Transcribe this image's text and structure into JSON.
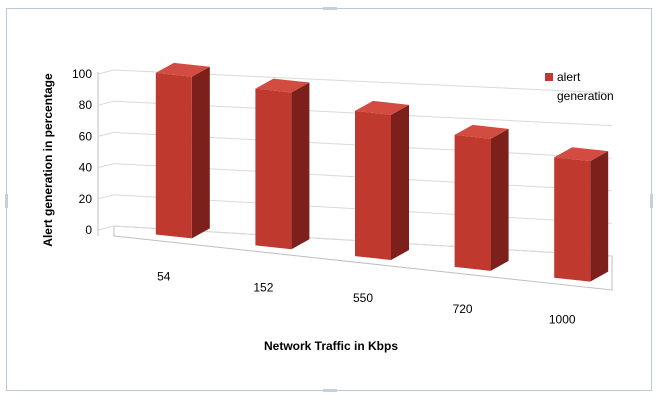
{
  "chart_data": {
    "type": "bar",
    "title": "",
    "xlabel": "Network Traffic in Kbps",
    "ylabel": "Alert generation in percentage",
    "categories": [
      "54",
      "152",
      "550",
      "720",
      "1000"
    ],
    "series": [
      {
        "name": "alert generation",
        "values": [
          98,
          95,
          88,
          80,
          73
        ]
      }
    ],
    "ylim": [
      0,
      100
    ],
    "yticks": [
      "0",
      "20",
      "40",
      "60",
      "80",
      "100"
    ],
    "legend": {
      "placement": "top-right",
      "lines": [
        "alert",
        "generation"
      ]
    },
    "grid": true,
    "three_d": true
  },
  "colors": {
    "bar_front": "#c0392f",
    "bar_side": "#7d1f1a",
    "bar_top": "#d24c42",
    "grid": "#d9d9d9",
    "frame": "#b9c9d6"
  }
}
